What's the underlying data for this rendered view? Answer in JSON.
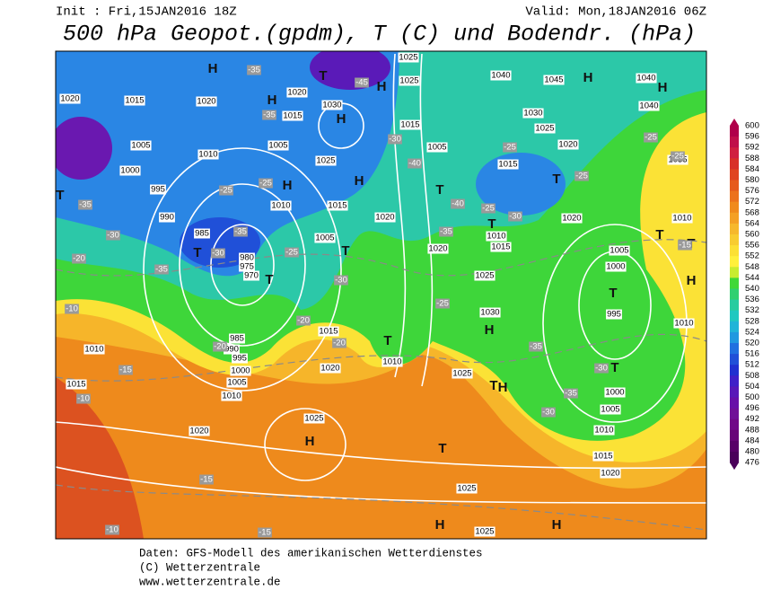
{
  "header": {
    "init": "Init : Fri,15JAN2016 18Z",
    "valid": "Valid: Mon,18JAN2016 06Z",
    "title": "500 hPa Geopot.(gpdm), T (C) und Bodendr. (hPa)"
  },
  "colorbar": {
    "levels": [
      600,
      596,
      592,
      588,
      584,
      580,
      576,
      572,
      568,
      564,
      560,
      556,
      552,
      548,
      544,
      540,
      536,
      532,
      528,
      524,
      520,
      516,
      512,
      508,
      504,
      500,
      496,
      492,
      488,
      484,
      480,
      476
    ],
    "colors": [
      "#b0004a",
      "#c0104a",
      "#d02040",
      "#d83028",
      "#e04420",
      "#e65a1c",
      "#ec721c",
      "#f08a1c",
      "#f4a024",
      "#f6b82c",
      "#f8cc30",
      "#fce034",
      "#fff03c",
      "#c8ec30",
      "#40d838",
      "#30d070",
      "#28cca0",
      "#20c8c0",
      "#20b4d8",
      "#2098e0",
      "#2070e0",
      "#2050d8",
      "#2030d0",
      "#4020c8",
      "#5818b8",
      "#6810a8",
      "#701098",
      "#700888",
      "#680478",
      "#580068",
      "#4a005a"
    ]
  },
  "map_labels": {
    "centers": [
      "H",
      "H",
      "T",
      "H",
      "H",
      "H",
      "H",
      "H",
      "H",
      "T",
      "T",
      "T",
      "T",
      "T",
      "T",
      "T",
      "T",
      "T",
      "H",
      "T",
      "H",
      "T",
      "T",
      "H",
      "T",
      "H",
      "T",
      "H",
      "H"
    ],
    "isobars": [
      1020,
      1015,
      1020,
      1005,
      1010,
      1000,
      995,
      990,
      985,
      980,
      975,
      970,
      1005,
      1015,
      1020,
      1030,
      1025,
      1010,
      1015,
      1005,
      1020,
      1025,
      1015,
      1005,
      1015,
      1010,
      1015,
      1020,
      1025,
      1030,
      1040,
      1045,
      1040,
      1040,
      1030,
      1025,
      1020,
      1035,
      1020,
      1010,
      1005,
      1000,
      995,
      1010,
      1015,
      985,
      990,
      995,
      1000,
      1005,
      1010,
      1020,
      1010,
      1025,
      1020,
      1025,
      1010,
      1015,
      1020,
      1025,
      1025,
      1010,
      1015,
      1000,
      1005,
      1025
    ],
    "isotherms": [
      -35,
      -45,
      -35,
      -30,
      -40,
      -40,
      -35,
      -30,
      -25,
      -25,
      -25,
      -25,
      -25,
      -30,
      -30,
      -35,
      -35,
      -35,
      -25,
      -20,
      -30,
      -20,
      -10,
      -25,
      -15,
      -20,
      -20,
      -15,
      -10,
      -35,
      -30,
      -30,
      -35,
      -15,
      -15,
      -10,
      -25,
      -25
    ]
  },
  "footer": [
    "Daten: GFS-Modell des amerikanischen Wetterdienstes",
    "(C) Wetterzentrale",
    "www.wetterzentrale.de"
  ]
}
